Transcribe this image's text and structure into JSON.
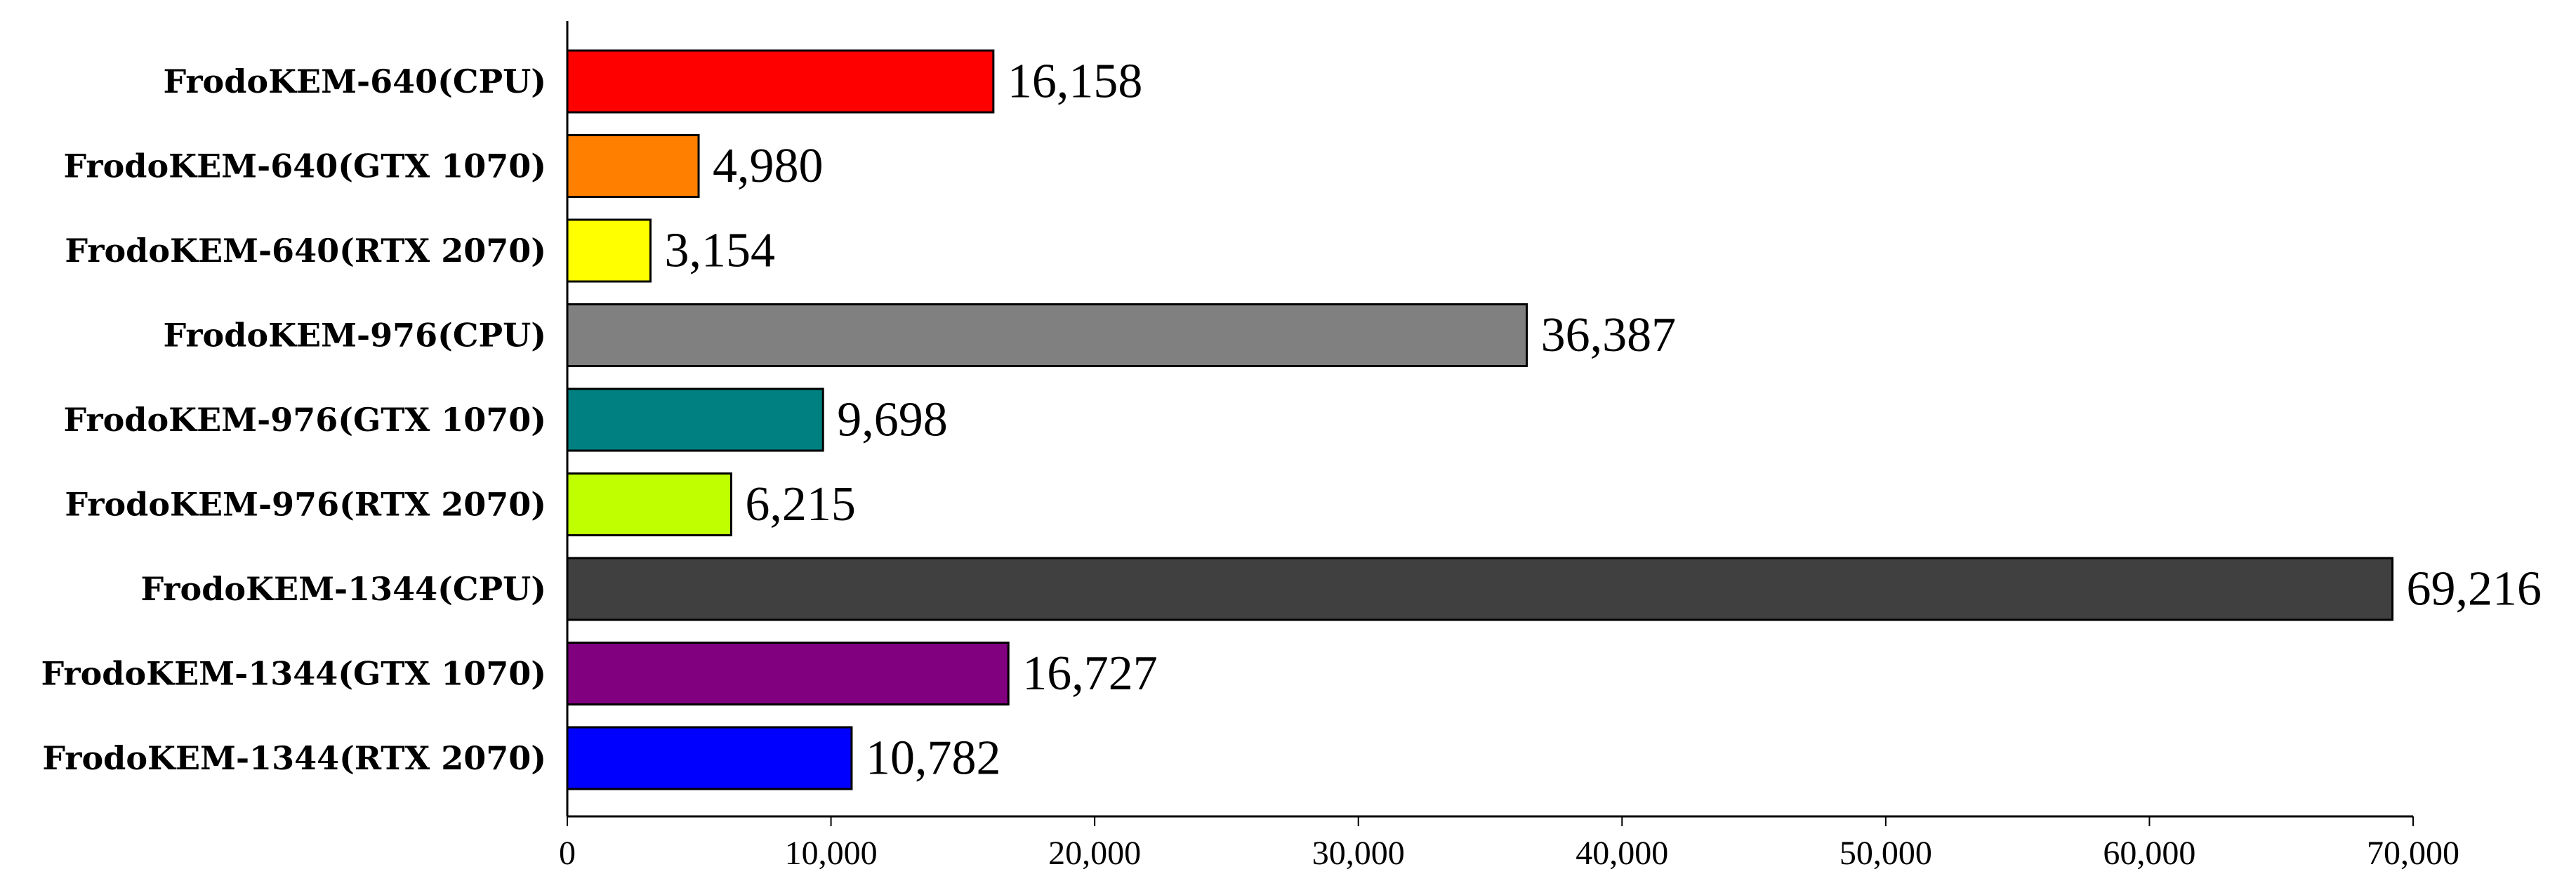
{
  "chart_data": {
    "type": "bar",
    "orientation": "horizontal",
    "title": "",
    "xlabel": "",
    "ylabel": "",
    "xlim": [
      0,
      70000
    ],
    "x_ticks": [
      0,
      10000,
      20000,
      30000,
      40000,
      50000,
      60000,
      70000
    ],
    "x_tick_labels": [
      "0",
      "10,000",
      "20,000",
      "30,000",
      "40,000",
      "50,000",
      "60,000",
      "70,000"
    ],
    "grid": false,
    "legend": "none",
    "categories": [
      "FrodoKEM-640(CPU)",
      "FrodoKEM-640(GTX 1070)",
      "FrodoKEM-640(RTX 2070)",
      "FrodoKEM-976(CPU)",
      "FrodoKEM-976(GTX 1070)",
      "FrodoKEM-976(RTX 2070)",
      "FrodoKEM-1344(CPU)",
      "FrodoKEM-1344(GTX 1070)",
      "FrodoKEM-1344(RTX 2070)"
    ],
    "values": [
      16158,
      4980,
      3154,
      36387,
      9698,
      6215,
      69216,
      16727,
      10782
    ],
    "value_labels": [
      "16,158",
      "4,980",
      "3,154",
      "36,387",
      "9,698",
      "6,215",
      "69,216",
      "16,727",
      "10,782"
    ],
    "colors": [
      "#ff0000",
      "#ff8000",
      "#ffff00",
      "#808080",
      "#008080",
      "#bfff00",
      "#404040",
      "#800080",
      "#0000ff"
    ]
  }
}
